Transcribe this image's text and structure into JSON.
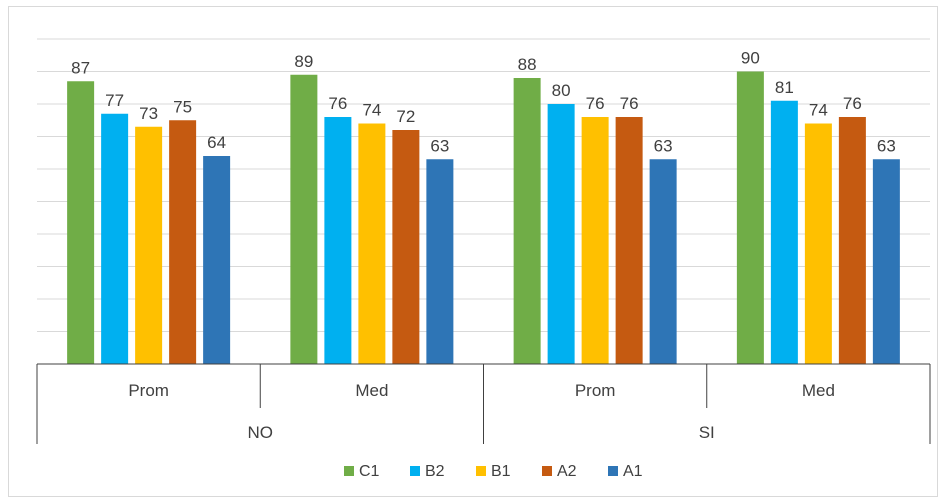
{
  "chart_data": {
    "type": "bar",
    "ylim": [
      0,
      100
    ],
    "grid": true,
    "legend_position": "bottom",
    "groups": [
      {
        "label": "NO",
        "subcategories": [
          "Prom",
          "Med"
        ]
      },
      {
        "label": "SI",
        "subcategories": [
          "Prom",
          "Med"
        ]
      }
    ],
    "categories": [
      "Prom",
      "Med",
      "Prom",
      "Med"
    ],
    "series": [
      {
        "name": "C1",
        "color": "#70ad47",
        "values": [
          87,
          89,
          88,
          90
        ]
      },
      {
        "name": "B2",
        "color": "#00b0f0",
        "values": [
          77,
          76,
          80,
          81
        ]
      },
      {
        "name": "B1",
        "color": "#ffc000",
        "values": [
          73,
          74,
          76,
          74
        ]
      },
      {
        "name": "A2",
        "color": "#c55a11",
        "values": [
          75,
          72,
          76,
          76
        ]
      },
      {
        "name": "A1",
        "color": "#2e75b6",
        "values": [
          64,
          63,
          63,
          63
        ]
      }
    ]
  }
}
